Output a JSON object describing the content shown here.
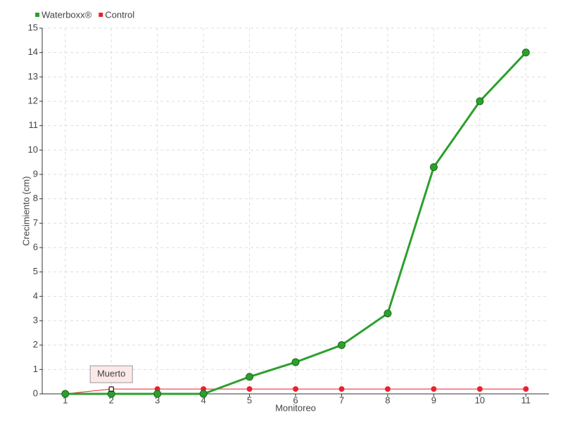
{
  "chart_data": {
    "type": "line",
    "x_label": "Monitoreo",
    "y_label": "Crecimiento (cm)",
    "categories": [
      "1",
      "2",
      "3",
      "4",
      "5",
      "6",
      "7",
      "8",
      "9",
      "10",
      "11"
    ],
    "series": [
      {
        "name": "Waterboxx®",
        "color": "#2ca02c",
        "values": [
          0,
          0,
          0,
          0,
          0.7,
          1.3,
          2.0,
          3.3,
          9.3,
          12.0,
          14.0
        ]
      },
      {
        "name": "Control",
        "color": "#e8222e",
        "values": [
          0,
          0.2,
          0.2,
          0.2,
          0.2,
          0.2,
          0.2,
          0.2,
          0.2,
          0.2,
          0.2
        ]
      }
    ],
    "annotations": [
      {
        "text": "Muerto",
        "series": 1,
        "index": 1
      }
    ],
    "ylim": [
      0,
      15
    ],
    "yticks": [
      0,
      1,
      2,
      3,
      4,
      5,
      6,
      7,
      8,
      9,
      10,
      11,
      12,
      13,
      14,
      15
    ],
    "grid": true,
    "legend": "top-left"
  }
}
